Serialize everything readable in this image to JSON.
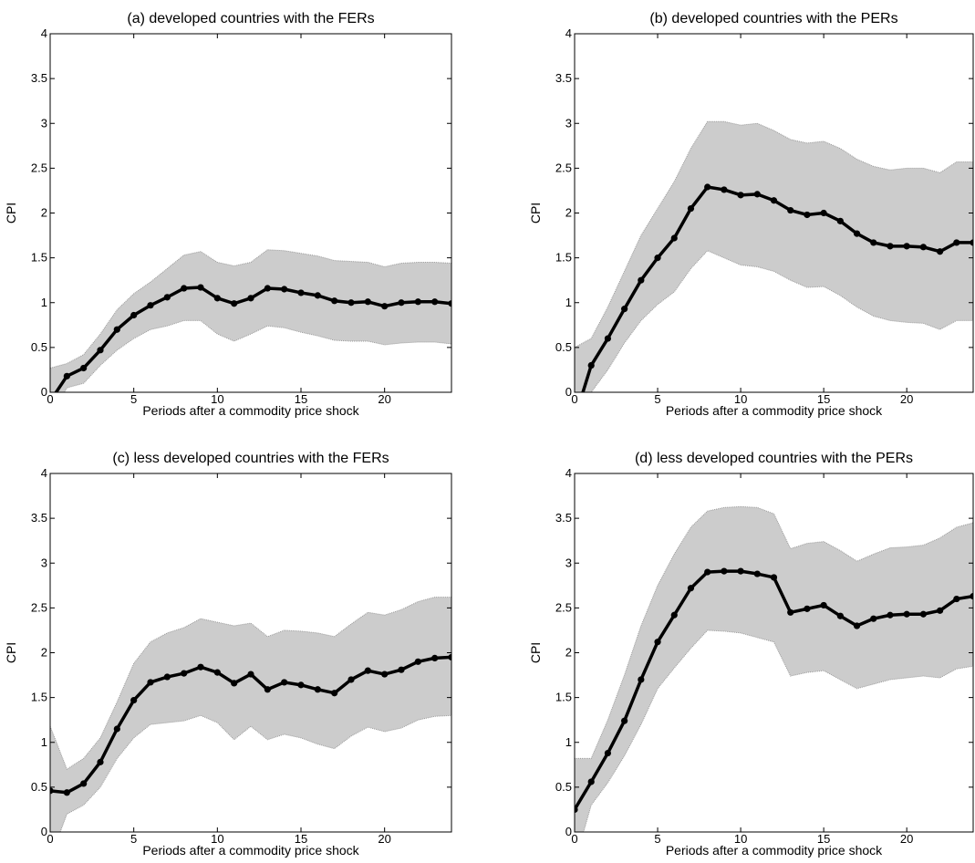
{
  "chart_data": [
    {
      "type": "line",
      "title": "(a) developed countries with the FERs",
      "xlabel": "Periods after a commodity price shock",
      "ylabel": "CPI",
      "x": [
        0,
        1,
        2,
        3,
        4,
        5,
        6,
        7,
        8,
        9,
        10,
        11,
        12,
        13,
        14,
        15,
        16,
        17,
        18,
        19,
        20,
        21,
        22,
        23,
        24
      ],
      "values": [
        -0.1,
        0.18,
        0.27,
        0.47,
        0.7,
        0.86,
        0.97,
        1.06,
        1.16,
        1.17,
        1.05,
        0.99,
        1.05,
        1.16,
        1.15,
        1.11,
        1.08,
        1.02,
        1.0,
        1.01,
        0.96,
        1.0,
        1.01,
        1.01,
        0.99
      ],
      "upper": [
        0.27,
        0.32,
        0.42,
        0.65,
        0.92,
        1.1,
        1.23,
        1.38,
        1.53,
        1.57,
        1.45,
        1.41,
        1.45,
        1.59,
        1.58,
        1.55,
        1.52,
        1.47,
        1.46,
        1.45,
        1.4,
        1.44,
        1.45,
        1.45,
        1.44
      ],
      "lower": [
        -0.3,
        0.05,
        0.1,
        0.3,
        0.47,
        0.6,
        0.7,
        0.74,
        0.8,
        0.8,
        0.65,
        0.57,
        0.65,
        0.74,
        0.72,
        0.67,
        0.63,
        0.58,
        0.57,
        0.57,
        0.53,
        0.55,
        0.56,
        0.56,
        0.54
      ],
      "color": "#000000",
      "band_color": "#cccccc",
      "xlim": [
        0,
        24
      ],
      "xticks": [
        0,
        5,
        10,
        15,
        20
      ],
      "ylim": [
        0,
        4
      ],
      "yticks": [
        0,
        0.5,
        1,
        1.5,
        2,
        2.5,
        3,
        3.5,
        4
      ]
    },
    {
      "type": "line",
      "title": "(b) developed countries with the PERs",
      "xlabel": "Periods after a commodity price shock",
      "ylabel": "CPI",
      "x": [
        0,
        1,
        2,
        3,
        4,
        5,
        6,
        7,
        8,
        9,
        10,
        11,
        12,
        13,
        14,
        15,
        16,
        17,
        18,
        19,
        20,
        21,
        22,
        23,
        24
      ],
      "values": [
        -0.3,
        0.3,
        0.6,
        0.93,
        1.25,
        1.5,
        1.72,
        2.05,
        2.29,
        2.26,
        2.2,
        2.21,
        2.14,
        2.03,
        1.98,
        2.0,
        1.91,
        1.77,
        1.67,
        1.63,
        1.63,
        1.62,
        1.57,
        1.67,
        1.67
      ],
      "upper": [
        0.5,
        0.6,
        0.95,
        1.35,
        1.75,
        2.05,
        2.35,
        2.72,
        3.02,
        3.02,
        2.98,
        3.0,
        2.92,
        2.82,
        2.78,
        2.8,
        2.72,
        2.6,
        2.52,
        2.48,
        2.5,
        2.5,
        2.45,
        2.57,
        2.57
      ],
      "lower": [
        -1,
        0.0,
        0.25,
        0.55,
        0.8,
        0.98,
        1.12,
        1.38,
        1.58,
        1.5,
        1.42,
        1.4,
        1.35,
        1.25,
        1.17,
        1.18,
        1.08,
        0.95,
        0.85,
        0.8,
        0.78,
        0.77,
        0.7,
        0.8,
        0.8
      ],
      "color": "#000000",
      "band_color": "#cccccc",
      "xlim": [
        0,
        24
      ],
      "xticks": [
        0,
        5,
        10,
        15,
        20
      ],
      "ylim": [
        0,
        4
      ],
      "yticks": [
        0,
        0.5,
        1,
        1.5,
        2,
        2.5,
        3,
        3.5,
        4
      ]
    },
    {
      "type": "line",
      "title": "(c) less developed countries with the FERs",
      "xlabel": "Periods after a commodity price shock",
      "ylabel": "CPI",
      "x": [
        0,
        1,
        2,
        3,
        4,
        5,
        6,
        7,
        8,
        9,
        10,
        11,
        12,
        13,
        14,
        15,
        16,
        17,
        18,
        19,
        20,
        21,
        22,
        23,
        24
      ],
      "values": [
        0.46,
        0.44,
        0.54,
        0.78,
        1.15,
        1.47,
        1.67,
        1.73,
        1.77,
        1.84,
        1.78,
        1.66,
        1.76,
        1.59,
        1.67,
        1.64,
        1.59,
        1.55,
        1.7,
        1.8,
        1.76,
        1.81,
        1.9,
        1.94,
        1.95
      ],
      "upper": [
        1.18,
        0.7,
        0.82,
        1.05,
        1.45,
        1.88,
        2.12,
        2.22,
        2.28,
        2.38,
        2.34,
        2.3,
        2.33,
        2.18,
        2.25,
        2.24,
        2.22,
        2.18,
        2.32,
        2.45,
        2.42,
        2.48,
        2.57,
        2.62,
        2.62
      ],
      "lower": [
        -0.3,
        0.2,
        0.3,
        0.5,
        0.82,
        1.05,
        1.2,
        1.22,
        1.24,
        1.3,
        1.22,
        1.03,
        1.18,
        1.03,
        1.09,
        1.05,
        0.98,
        0.93,
        1.07,
        1.17,
        1.12,
        1.16,
        1.25,
        1.29,
        1.3
      ],
      "color": "#000000",
      "band_color": "#cccccc",
      "xlim": [
        0,
        24
      ],
      "xticks": [
        0,
        5,
        10,
        15,
        20
      ],
      "ylim": [
        0,
        4
      ],
      "yticks": [
        0,
        0.5,
        1,
        1.5,
        2,
        2.5,
        3,
        3.5,
        4
      ]
    },
    {
      "type": "line",
      "title": "(d) less developed countries with the PERs",
      "xlabel": "Periods after a commodity price shock",
      "ylabel": "CPI",
      "x": [
        0,
        1,
        2,
        3,
        4,
        5,
        6,
        7,
        8,
        9,
        10,
        11,
        12,
        13,
        14,
        15,
        16,
        17,
        18,
        19,
        20,
        21,
        22,
        23,
        24
      ],
      "values": [
        0.25,
        0.56,
        0.88,
        1.24,
        1.7,
        2.12,
        2.42,
        2.72,
        2.9,
        2.91,
        2.91,
        2.88,
        2.84,
        2.45,
        2.49,
        2.53,
        2.41,
        2.3,
        2.38,
        2.42,
        2.43,
        2.43,
        2.47,
        2.6,
        2.63
      ],
      "upper": [
        0.82,
        0.82,
        1.25,
        1.75,
        2.3,
        2.75,
        3.1,
        3.4,
        3.58,
        3.62,
        3.63,
        3.62,
        3.55,
        3.16,
        3.22,
        3.24,
        3.14,
        3.02,
        3.1,
        3.17,
        3.18,
        3.2,
        3.28,
        3.4,
        3.45
      ],
      "lower": [
        -0.35,
        0.3,
        0.55,
        0.85,
        1.2,
        1.6,
        1.83,
        2.05,
        2.25,
        2.24,
        2.22,
        2.17,
        2.12,
        1.74,
        1.78,
        1.8,
        1.7,
        1.6,
        1.65,
        1.7,
        1.72,
        1.74,
        1.72,
        1.82,
        1.85
      ],
      "color": "#000000",
      "band_color": "#cccccc",
      "xlim": [
        0,
        24
      ],
      "xticks": [
        0,
        5,
        10,
        15,
        20
      ],
      "ylim": [
        0,
        4
      ],
      "yticks": [
        0,
        0.5,
        1,
        1.5,
        2,
        2.5,
        3,
        3.5,
        4
      ]
    }
  ]
}
